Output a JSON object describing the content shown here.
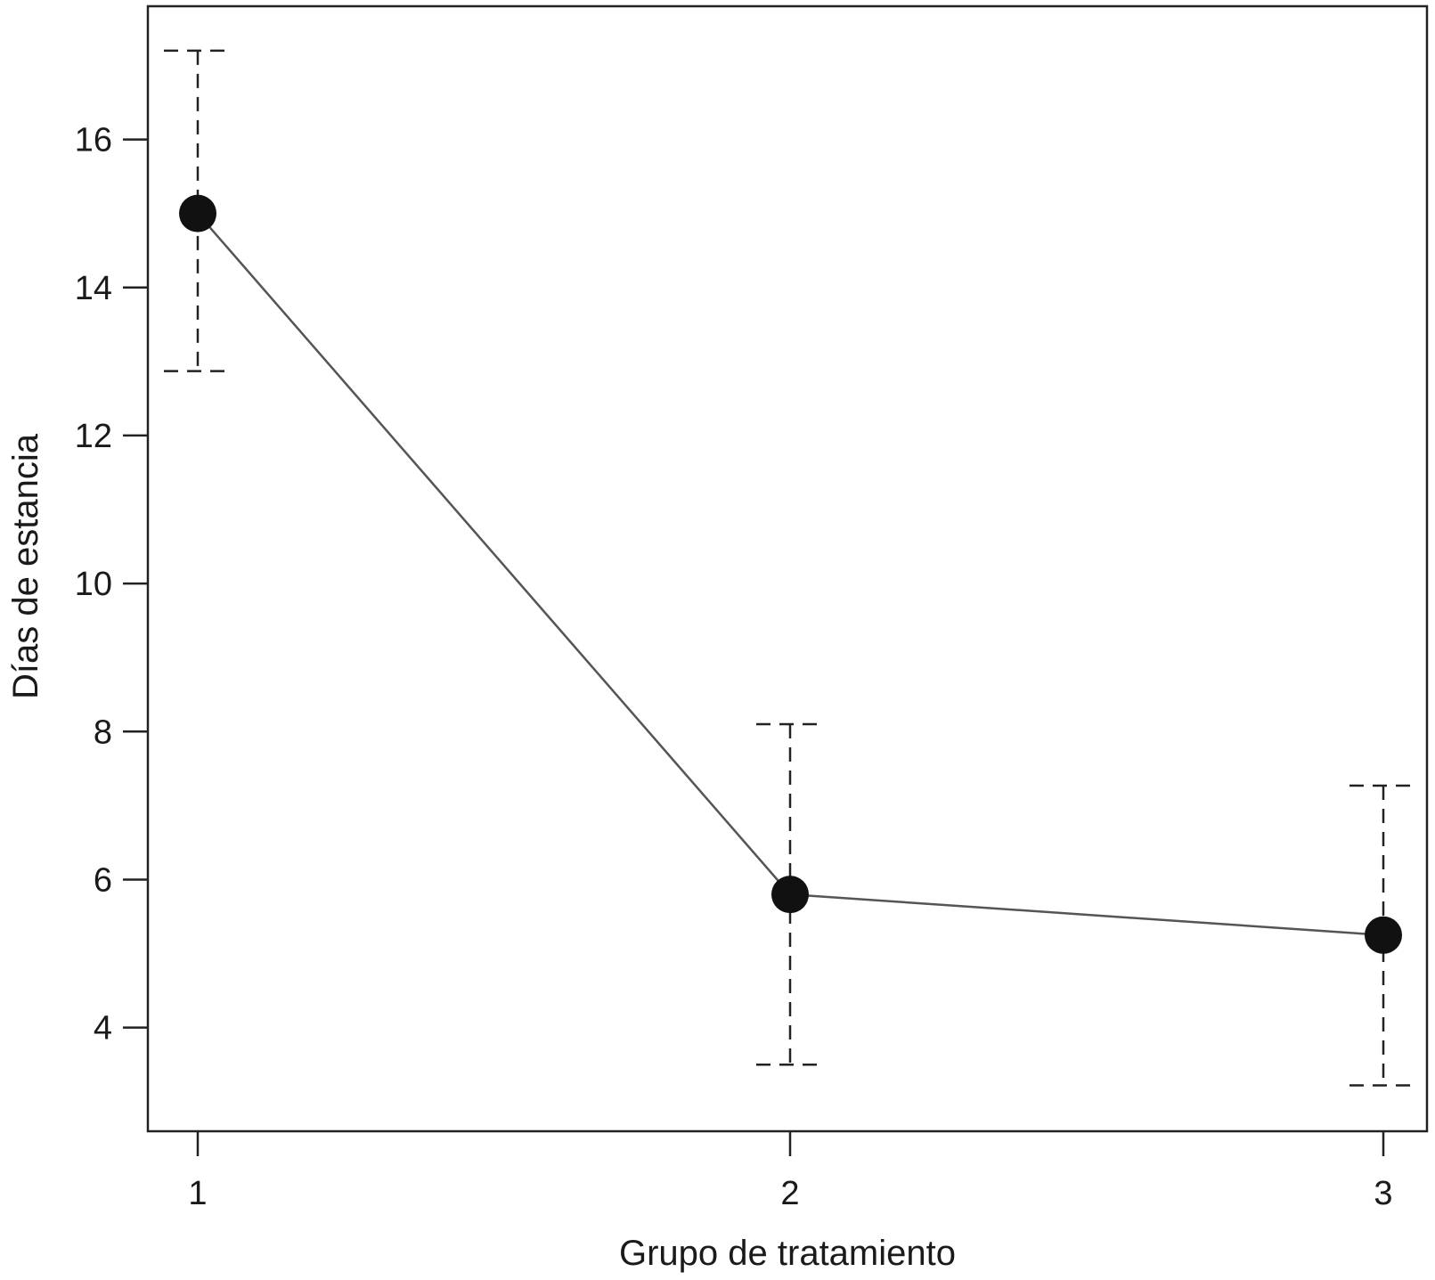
{
  "chart_data": {
    "type": "line",
    "title": "",
    "xlabel": "Grupo de tratamiento",
    "ylabel": "Días de estancia",
    "categories": [
      "1",
      "2",
      "3"
    ],
    "series": [
      {
        "values": [
          15.0,
          5.8,
          5.25
        ],
        "error_upper": [
          17.2,
          8.1,
          7.27
        ],
        "error_lower": [
          12.87,
          3.5,
          3.22
        ]
      }
    ],
    "x_ticks": [
      "1",
      "2",
      "3"
    ],
    "y_ticks": [
      4,
      6,
      8,
      10,
      12,
      14,
      16
    ],
    "ylim": [
      2.6,
      17.8
    ],
    "error_bar_style": "dashed",
    "marker": "filled-circle",
    "grid": false,
    "legend": "none",
    "colors": {
      "line": "#555555",
      "marker": "#111111",
      "axis": "#222222",
      "error_bar": "#222222"
    }
  }
}
